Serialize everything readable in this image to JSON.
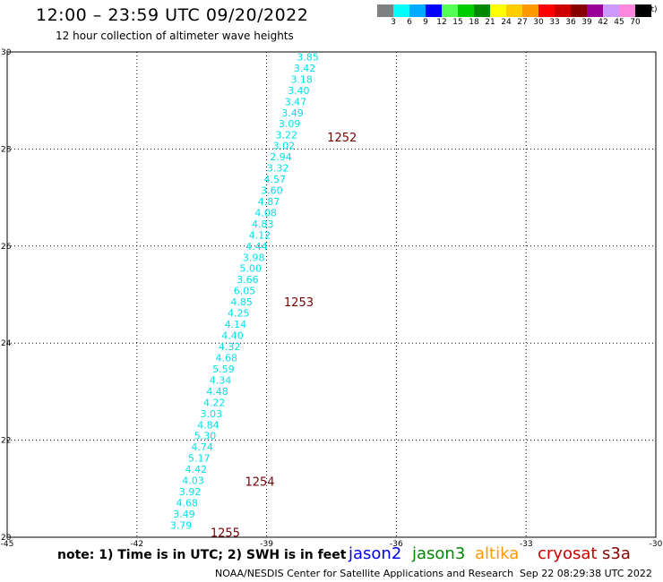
{
  "header": {
    "title": "12:00 – 23:59 UTC 09/20/2022",
    "subtitle": "12 hour collection of altimeter wave heights"
  },
  "color_scale": {
    "unit": "(ft)",
    "bins": [
      {
        "label": "3",
        "color": "#808080"
      },
      {
        "label": "6",
        "color": "#00ffff"
      },
      {
        "label": "9",
        "color": "#00aaff"
      },
      {
        "label": "12",
        "color": "#0000ff"
      },
      {
        "label": "15",
        "color": "#55ff55"
      },
      {
        "label": "18",
        "color": "#00cc00"
      },
      {
        "label": "21",
        "color": "#008800"
      },
      {
        "label": "24",
        "color": "#ffff00"
      },
      {
        "label": "27",
        "color": "#ffcc00"
      },
      {
        "label": "30",
        "color": "#ff9900"
      },
      {
        "label": "33",
        "color": "#ff0000"
      },
      {
        "label": "36",
        "color": "#cc0000"
      },
      {
        "label": "39",
        "color": "#880000"
      },
      {
        "label": "42",
        "color": "#990099"
      },
      {
        "label": "45",
        "color": "#cc99ff"
      },
      {
        "label": "70",
        "color": "#ff88dd"
      },
      {
        "label": "",
        "color": "#000000"
      }
    ]
  },
  "chart_data": {
    "type": "scatter",
    "xlim": [
      -45,
      -30
    ],
    "ylim": [
      20,
      30
    ],
    "x_ticks": [
      "-45",
      "-42",
      "-39",
      "-36",
      "-33",
      "-30"
    ],
    "x_tick_values": [
      -45,
      -42,
      -39,
      -36,
      -33,
      -30
    ],
    "y_ticks": [
      "20",
      "22",
      "24",
      "26",
      "28",
      "30"
    ],
    "y_tick_values": [
      20,
      22,
      24,
      26,
      28,
      30
    ],
    "grid": true,
    "series": [
      {
        "name": "cryosat",
        "color": "#00e0e8",
        "points": [
          {
            "lon": -38.05,
            "lat": 29.9,
            "value": "3.85"
          },
          {
            "lon": -38.12,
            "lat": 29.67,
            "value": "3.42"
          },
          {
            "lon": -38.19,
            "lat": 29.44,
            "value": "3.18"
          },
          {
            "lon": -38.26,
            "lat": 29.21,
            "value": "3.40"
          },
          {
            "lon": -38.33,
            "lat": 28.98,
            "value": "3.47"
          },
          {
            "lon": -38.4,
            "lat": 28.75,
            "value": "3.49"
          },
          {
            "lon": -38.47,
            "lat": 28.52,
            "value": "3.09"
          },
          {
            "lon": -38.54,
            "lat": 28.29,
            "value": "3.22"
          },
          {
            "lon": -38.6,
            "lat": 28.07,
            "value": "3.02"
          },
          {
            "lon": -38.67,
            "lat": 27.84,
            "value": "2.94"
          },
          {
            "lon": -38.74,
            "lat": 27.61,
            "value": "3.32"
          },
          {
            "lon": -38.81,
            "lat": 27.38,
            "value": "4.57"
          },
          {
            "lon": -38.88,
            "lat": 27.15,
            "value": "3.60"
          },
          {
            "lon": -38.95,
            "lat": 26.92,
            "value": "4.87"
          },
          {
            "lon": -39.02,
            "lat": 26.69,
            "value": "4.08"
          },
          {
            "lon": -39.09,
            "lat": 26.46,
            "value": "4.83"
          },
          {
            "lon": -39.16,
            "lat": 26.23,
            "value": "4.12"
          },
          {
            "lon": -39.23,
            "lat": 26.0,
            "value": "4.44"
          },
          {
            "lon": -39.3,
            "lat": 25.77,
            "value": "3.98"
          },
          {
            "lon": -39.37,
            "lat": 25.54,
            "value": "5.00"
          },
          {
            "lon": -39.44,
            "lat": 25.31,
            "value": "3.66"
          },
          {
            "lon": -39.51,
            "lat": 25.08,
            "value": "6.05"
          },
          {
            "lon": -39.58,
            "lat": 24.85,
            "value": "4.85"
          },
          {
            "lon": -39.65,
            "lat": 24.62,
            "value": "4.25"
          },
          {
            "lon": -39.72,
            "lat": 24.39,
            "value": "4.14"
          },
          {
            "lon": -39.79,
            "lat": 24.16,
            "value": "4.40"
          },
          {
            "lon": -39.86,
            "lat": 23.93,
            "value": "4.32"
          },
          {
            "lon": -39.93,
            "lat": 23.7,
            "value": "4.68"
          },
          {
            "lon": -40.0,
            "lat": 23.47,
            "value": "5.59"
          },
          {
            "lon": -40.07,
            "lat": 23.24,
            "value": "4.34"
          },
          {
            "lon": -40.14,
            "lat": 23.01,
            "value": "4.48"
          },
          {
            "lon": -40.21,
            "lat": 22.78,
            "value": "4.22"
          },
          {
            "lon": -40.28,
            "lat": 22.55,
            "value": "3.03"
          },
          {
            "lon": -40.35,
            "lat": 22.32,
            "value": "4.84"
          },
          {
            "lon": -40.42,
            "lat": 22.09,
            "value": "5.30"
          },
          {
            "lon": -40.49,
            "lat": 21.86,
            "value": "4.74"
          },
          {
            "lon": -40.56,
            "lat": 21.63,
            "value": "5.17"
          },
          {
            "lon": -40.63,
            "lat": 21.4,
            "value": "4.42"
          },
          {
            "lon": -40.7,
            "lat": 21.17,
            "value": "4.03"
          },
          {
            "lon": -40.77,
            "lat": 20.94,
            "value": "3.92"
          },
          {
            "lon": -40.84,
            "lat": 20.71,
            "value": "4.68"
          },
          {
            "lon": -40.91,
            "lat": 20.48,
            "value": "3.49"
          },
          {
            "lon": -40.98,
            "lat": 20.25,
            "value": "3.79"
          }
        ],
        "time_labels": [
          {
            "lon": -37.6,
            "lat": 28.25,
            "text": "1252"
          },
          {
            "lon": -38.6,
            "lat": 24.85,
            "text": "1253"
          },
          {
            "lon": -39.5,
            "lat": 21.15,
            "text": "1254"
          },
          {
            "lon": -40.3,
            "lat": 20.1,
            "text": "1255"
          }
        ],
        "time_label_color": "#7a0000"
      }
    ]
  },
  "footer": {
    "note": "note: 1) Time is in UTC; 2) SWH is in feet",
    "legend": [
      {
        "label": "jason2",
        "color": "#0000ee"
      },
      {
        "label": "jason3",
        "color": "#008800"
      },
      {
        "label": "altika",
        "color": "#ff9900"
      },
      {
        "label": "cryosat",
        "color": "#cc0000"
      },
      {
        "label": "s3a",
        "color": "#880000"
      }
    ],
    "credit": "NOAA/NESDIS Center for Satellite Applications and Research",
    "timestamp": "Sep 22 08:29:38 UTC 2022"
  }
}
